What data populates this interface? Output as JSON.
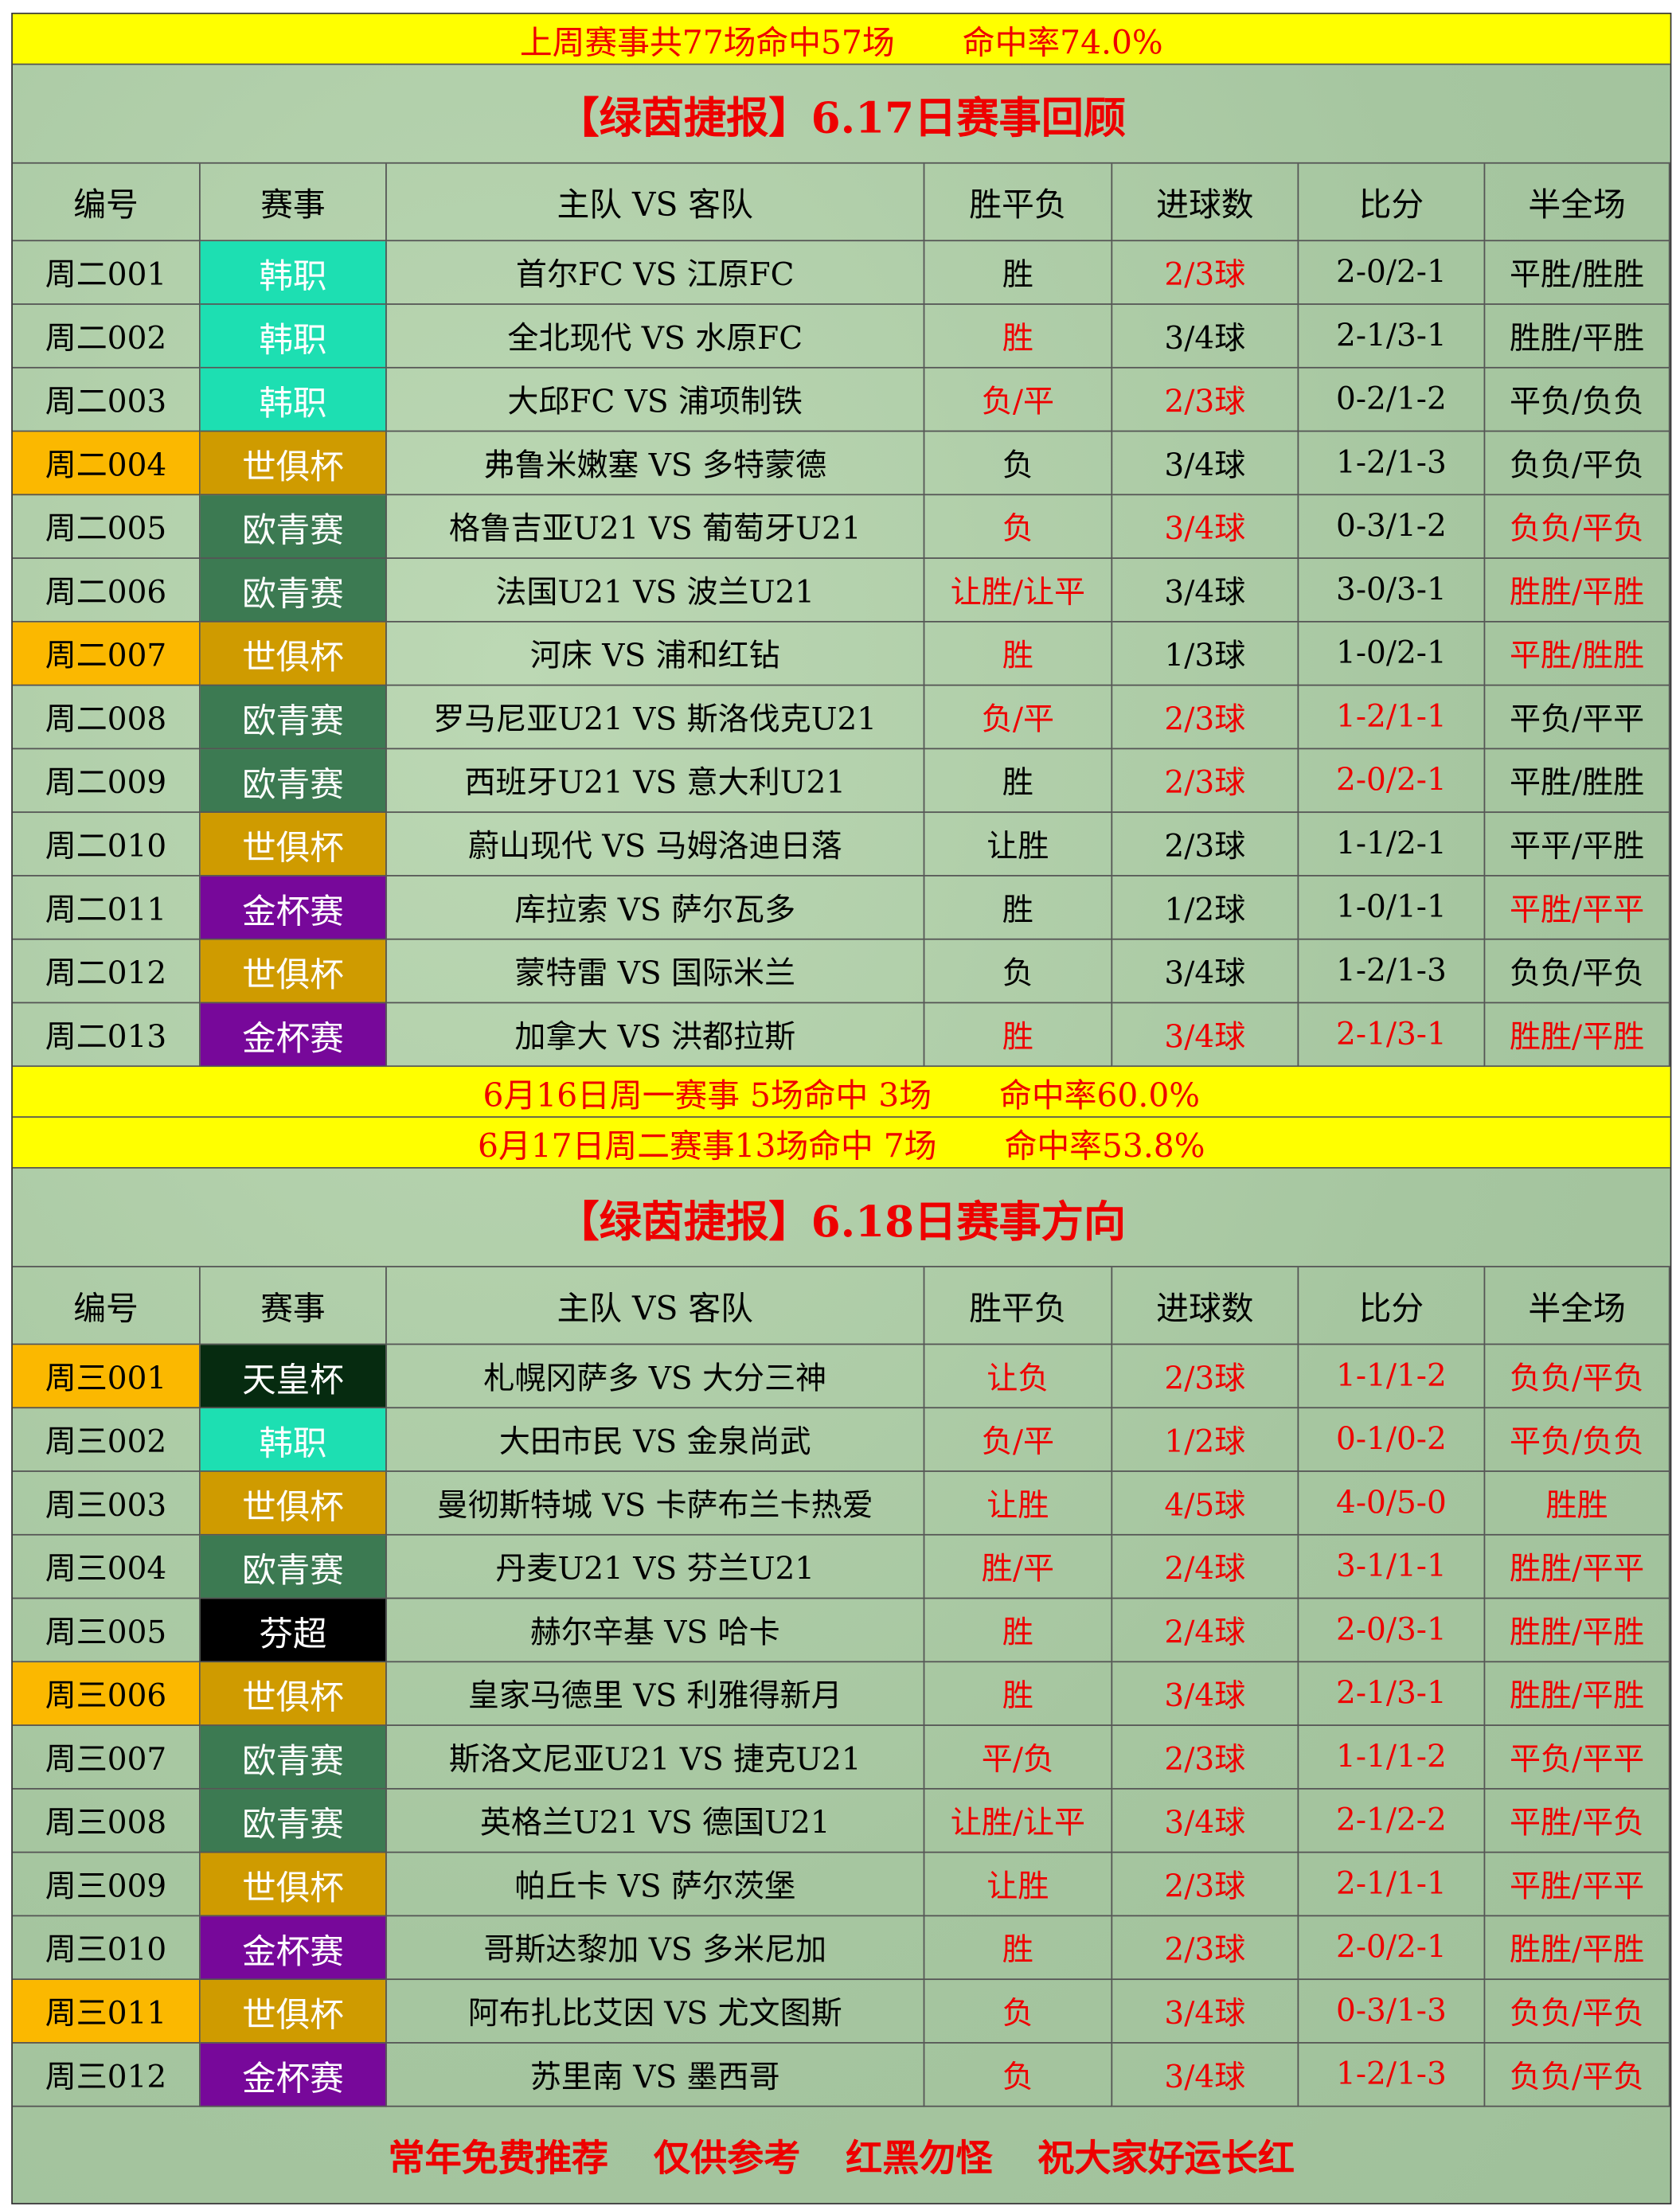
{
  "summary": [
    "上周赛事共77场命中57场",
    "命中率74.0%"
  ],
  "review": {
    "title": "【绿茵捷报】6.17日赛事回顾",
    "header": [
      "编号",
      "赛事",
      "主队 VS 客队",
      "胜平负",
      "进球数",
      "比分",
      "半全场"
    ],
    "rows": [
      {
        "cells": [
          "周二001",
          "韩职",
          "首尔FC VS 江原FC",
          "胜",
          "2/3球",
          "2-0/2-1",
          "平胜/胜胜"
        ],
        "bg": [
          "none",
          "#1ddfb2"
        ],
        "fg": [
          "#000",
          "#fff",
          "#000",
          "#000",
          "#e00",
          "#000",
          "#000"
        ]
      },
      {
        "cells": [
          "周二002",
          "韩职",
          "全北现代 VS 水原FC",
          "胜",
          "3/4球",
          "2-1/3-1",
          "胜胜/平胜"
        ],
        "bg": [
          "none",
          "#1ddfb2"
        ],
        "fg": [
          "#000",
          "#fff",
          "#000",
          "#e00",
          "#000",
          "#000",
          "#000"
        ]
      },
      {
        "cells": [
          "周二003",
          "韩职",
          "大邱FC VS 浦项制铁",
          "负/平",
          "2/3球",
          "0-2/1-2",
          "平负/负负"
        ],
        "bg": [
          "none",
          "#1ddfb2"
        ],
        "fg": [
          "#000",
          "#fff",
          "#000",
          "#e00",
          "#e00",
          "#000",
          "#000"
        ]
      },
      {
        "cells": [
          "周二004",
          "世俱杯",
          "弗鲁米嫩塞 VS 多特蒙德",
          "负",
          "3/4球",
          "1-2/1-3",
          "负负/平负"
        ],
        "bg": [
          "#fbb800",
          "#cf9b00"
        ],
        "fg": [
          "#000",
          "#fff",
          "#000",
          "#000",
          "#000",
          "#000",
          "#000"
        ]
      },
      {
        "cells": [
          "周二005",
          "欧青赛",
          "格鲁吉亚U21 VS 葡萄牙U21",
          "负",
          "3/4球",
          "0-3/1-2",
          "负负/平负"
        ],
        "bg": [
          "none",
          "#3c7a52"
        ],
        "fg": [
          "#000",
          "#fff",
          "#000",
          "#e00",
          "#e00",
          "#000",
          "#e00"
        ]
      },
      {
        "cells": [
          "周二006",
          "欧青赛",
          "法国U21 VS 波兰U21",
          "让胜/让平",
          "3/4球",
          "3-0/3-1",
          "胜胜/平胜"
        ],
        "bg": [
          "none",
          "#3c7a52"
        ],
        "fg": [
          "#000",
          "#fff",
          "#000",
          "#e00",
          "#000",
          "#000",
          "#e00"
        ]
      },
      {
        "cells": [
          "周二007",
          "世俱杯",
          "河床 VS 浦和红钻",
          "胜",
          "1/3球",
          "1-0/2-1",
          "平胜/胜胜"
        ],
        "bg": [
          "#fbb800",
          "#cf9b00"
        ],
        "fg": [
          "#000",
          "#fff",
          "#000",
          "#e00",
          "#000",
          "#000",
          "#e00"
        ]
      },
      {
        "cells": [
          "周二008",
          "欧青赛",
          "罗马尼亚U21 VS 斯洛伐克U21",
          "负/平",
          "2/3球",
          "1-2/1-1",
          "平负/平平"
        ],
        "bg": [
          "none",
          "#3c7a52"
        ],
        "fg": [
          "#000",
          "#fff",
          "#000",
          "#e00",
          "#e00",
          "#e00",
          "#000"
        ]
      },
      {
        "cells": [
          "周二009",
          "欧青赛",
          "西班牙U21 VS 意大利U21",
          "胜",
          "2/3球",
          "2-0/2-1",
          "平胜/胜胜"
        ],
        "bg": [
          "none",
          "#3c7a52"
        ],
        "fg": [
          "#000",
          "#fff",
          "#000",
          "#000",
          "#e00",
          "#e00",
          "#000"
        ]
      },
      {
        "cells": [
          "周二010",
          "世俱杯",
          "蔚山现代 VS 马姆洛迪日落",
          "让胜",
          "2/3球",
          "1-1/2-1",
          "平平/平胜"
        ],
        "bg": [
          "none",
          "#cf9b00"
        ],
        "fg": [
          "#000",
          "#fff",
          "#000",
          "#000",
          "#000",
          "#000",
          "#000"
        ]
      },
      {
        "cells": [
          "周二011",
          "金杯赛",
          "库拉索 VS 萨尔瓦多",
          "胜",
          "1/2球",
          "1-0/1-1",
          "平胜/平平"
        ],
        "bg": [
          "none",
          "#77089a"
        ],
        "fg": [
          "#000",
          "#fff",
          "#000",
          "#000",
          "#000",
          "#000",
          "#e00"
        ]
      },
      {
        "cells": [
          "周二012",
          "世俱杯",
          "蒙特雷 VS 国际米兰",
          "负",
          "3/4球",
          "1-2/1-3",
          "负负/平负"
        ],
        "bg": [
          "none",
          "#cf9b00"
        ],
        "fg": [
          "#000",
          "#fff",
          "#000",
          "#000",
          "#000",
          "#000",
          "#000"
        ]
      },
      {
        "cells": [
          "周二013",
          "金杯赛",
          "加拿大 VS 洪都拉斯",
          "胜",
          "3/4球",
          "2-1/3-1",
          "胜胜/平胜"
        ],
        "bg": [
          "none",
          "#77089a"
        ],
        "fg": [
          "#000",
          "#fff",
          "#000",
          "#e00",
          "#e00",
          "#e00",
          "#e00"
        ]
      }
    ]
  },
  "daily": [
    [
      "6月16日周一赛事 5场命中 3场",
      "命中率60.0%"
    ],
    [
      "6月17日周二赛事13场命中 7场",
      "命中率53.8%"
    ]
  ],
  "preview": {
    "title": "【绿茵捷报】6.18日赛事方向",
    "header": [
      "编号",
      "赛事",
      "主队 VS 客队",
      "胜平负",
      "进球数",
      "比分",
      "半全场"
    ],
    "rows": [
      {
        "cells": [
          "周三001",
          "天皇杯",
          "札幌冈萨多 VS 大分三神",
          "让负",
          "2/3球",
          "1-1/1-2",
          "负负/平负"
        ],
        "bg": [
          "#fbb800",
          "#062b10"
        ],
        "fg": [
          "#000",
          "#fff",
          "#000",
          "#e00",
          "#e00",
          "#e00",
          "#e00"
        ]
      },
      {
        "cells": [
          "周三002",
          "韩职",
          "大田市民 VS 金泉尚武",
          "负/平",
          "1/2球",
          "0-1/0-2",
          "平负/负负"
        ],
        "bg": [
          "none",
          "#1ddfb2"
        ],
        "fg": [
          "#000",
          "#fff",
          "#000",
          "#e00",
          "#e00",
          "#e00",
          "#e00"
        ]
      },
      {
        "cells": [
          "周三003",
          "世俱杯",
          "曼彻斯特城 VS 卡萨布兰卡热爱",
          "让胜",
          "4/5球",
          "4-0/5-0",
          "胜胜"
        ],
        "bg": [
          "none",
          "#cf9b00"
        ],
        "fg": [
          "#000",
          "#fff",
          "#000",
          "#e00",
          "#e00",
          "#e00",
          "#e00"
        ]
      },
      {
        "cells": [
          "周三004",
          "欧青赛",
          "丹麦U21 VS 芬兰U21",
          "胜/平",
          "2/4球",
          "3-1/1-1",
          "胜胜/平平"
        ],
        "bg": [
          "none",
          "#3c7a52"
        ],
        "fg": [
          "#000",
          "#fff",
          "#000",
          "#e00",
          "#e00",
          "#e00",
          "#e00"
        ]
      },
      {
        "cells": [
          "周三005",
          "芬超",
          "赫尔辛基 VS 哈卡",
          "胜",
          "2/4球",
          "2-0/3-1",
          "胜胜/平胜"
        ],
        "bg": [
          "none",
          "#000000"
        ],
        "fg": [
          "#000",
          "#fff",
          "#000",
          "#e00",
          "#e00",
          "#e00",
          "#e00"
        ]
      },
      {
        "cells": [
          "周三006",
          "世俱杯",
          "皇家马德里 VS 利雅得新月",
          "胜",
          "3/4球",
          "2-1/3-1",
          "胜胜/平胜"
        ],
        "bg": [
          "#fbb800",
          "#cf9b00"
        ],
        "fg": [
          "#000",
          "#fff",
          "#000",
          "#e00",
          "#e00",
          "#e00",
          "#e00"
        ]
      },
      {
        "cells": [
          "周三007",
          "欧青赛",
          "斯洛文尼亚U21 VS 捷克U21",
          "平/负",
          "2/3球",
          "1-1/1-2",
          "平负/平平"
        ],
        "bg": [
          "none",
          "#3c7a52"
        ],
        "fg": [
          "#000",
          "#fff",
          "#000",
          "#e00",
          "#e00",
          "#e00",
          "#e00"
        ]
      },
      {
        "cells": [
          "周三008",
          "欧青赛",
          "英格兰U21 VS 德国U21",
          "让胜/让平",
          "3/4球",
          "2-1/2-2",
          "平胜/平负"
        ],
        "bg": [
          "none",
          "#3c7a52"
        ],
        "fg": [
          "#000",
          "#fff",
          "#000",
          "#e00",
          "#e00",
          "#e00",
          "#e00"
        ]
      },
      {
        "cells": [
          "周三009",
          "世俱杯",
          "帕丘卡 VS 萨尔茨堡",
          "让胜",
          "2/3球",
          "2-1/1-1",
          "平胜/平平"
        ],
        "bg": [
          "none",
          "#cf9b00"
        ],
        "fg": [
          "#000",
          "#fff",
          "#000",
          "#e00",
          "#e00",
          "#e00",
          "#e00"
        ]
      },
      {
        "cells": [
          "周三010",
          "金杯赛",
          "哥斯达黎加 VS 多米尼加",
          "胜",
          "2/3球",
          "2-0/2-1",
          "胜胜/平胜"
        ],
        "bg": [
          "none",
          "#77089a"
        ],
        "fg": [
          "#000",
          "#fff",
          "#000",
          "#e00",
          "#e00",
          "#e00",
          "#e00"
        ]
      },
      {
        "cells": [
          "周三011",
          "世俱杯",
          "阿布扎比艾因 VS 尤文图斯",
          "负",
          "3/4球",
          "0-3/1-3",
          "负负/平负"
        ],
        "bg": [
          "#fbb800",
          "#cf9b00"
        ],
        "fg": [
          "#000",
          "#fff",
          "#000",
          "#e00",
          "#e00",
          "#e00",
          "#e00"
        ]
      },
      {
        "cells": [
          "周三012",
          "金杯赛",
          "苏里南 VS 墨西哥",
          "负",
          "3/4球",
          "1-2/1-3",
          "负负/平负"
        ],
        "bg": [
          "none",
          "#77089a"
        ],
        "fg": [
          "#000",
          "#fff",
          "#000",
          "#e00",
          "#e00",
          "#e00",
          "#e00"
        ]
      }
    ]
  },
  "footer": [
    "常年免费推荐",
    "仅供参考",
    "红黑勿怪",
    "祝大家好运长红"
  ]
}
